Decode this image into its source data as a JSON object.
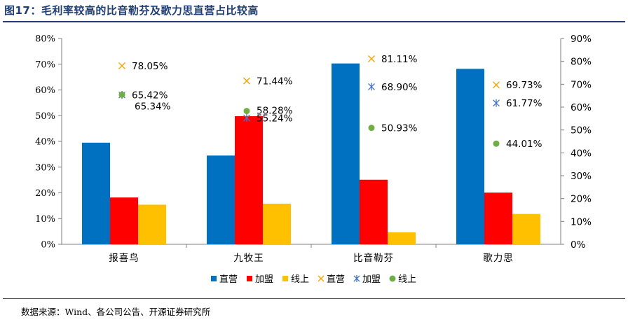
{
  "title": "图17：毛利率较高的比音勒芬及歌力思直营占比较高",
  "source": "数据来源：Wind、各公司公告、开源证券研究所",
  "colors": {
    "direct_bar": "#0070c0",
    "franchise_bar": "#ff0000",
    "online_bar": "#ffc000",
    "direct_marker": "#f7a400",
    "franchise_marker": "#4472c4",
    "online_marker": "#70ad47",
    "title": "#1f3e73"
  },
  "chart_data": {
    "type": "bar",
    "categories": [
      "报喜鸟",
      "九牧王",
      "比音勒芬",
      "歌力思"
    ],
    "left_axis": {
      "ylim": [
        0,
        80
      ],
      "ticks": [
        "0%",
        "10%",
        "20%",
        "30%",
        "40%",
        "50%",
        "60%",
        "70%",
        "80%"
      ]
    },
    "right_axis": {
      "ylim": [
        0,
        90
      ],
      "ticks": [
        "0%",
        "10%",
        "20%",
        "30%",
        "40%",
        "50%",
        "60%",
        "70%",
        "80%",
        "90%"
      ]
    },
    "bar_series": [
      {
        "name": "直营",
        "values": [
          39.5,
          34.5,
          70.3,
          68.2
        ],
        "color": "#0070c0"
      },
      {
        "name": "加盟",
        "values": [
          18.2,
          49.8,
          25.1,
          20.1
        ],
        "color": "#ff0000"
      },
      {
        "name": "线上",
        "values": [
          15.4,
          15.8,
          4.7,
          11.8
        ],
        "color": "#ffc000"
      }
    ],
    "marker_series": [
      {
        "name": "直营",
        "marker": "x",
        "color": "#f7a400",
        "values": [
          78.05,
          71.44,
          81.11,
          69.73
        ],
        "labels": [
          "78.05%",
          "71.44%",
          "81.11%",
          "69.73%"
        ]
      },
      {
        "name": "加盟",
        "marker": "star",
        "color": "#4472c4",
        "values": [
          65.34,
          55.24,
          68.9,
          61.77
        ],
        "labels": [
          "65.34%",
          "55.24%",
          "68.90%",
          "61.77%"
        ]
      },
      {
        "name": "线上",
        "marker": "dot",
        "color": "#70ad47",
        "values": [
          65.42,
          58.28,
          50.93,
          44.01
        ],
        "labels": [
          "65.42%",
          "58.28%",
          "50.93%",
          "44.01%"
        ]
      }
    ],
    "legend": [
      "直营",
      "加盟",
      "线上",
      "直营",
      "加盟",
      "线上"
    ],
    "legend_position": "bottom",
    "grid": false
  }
}
